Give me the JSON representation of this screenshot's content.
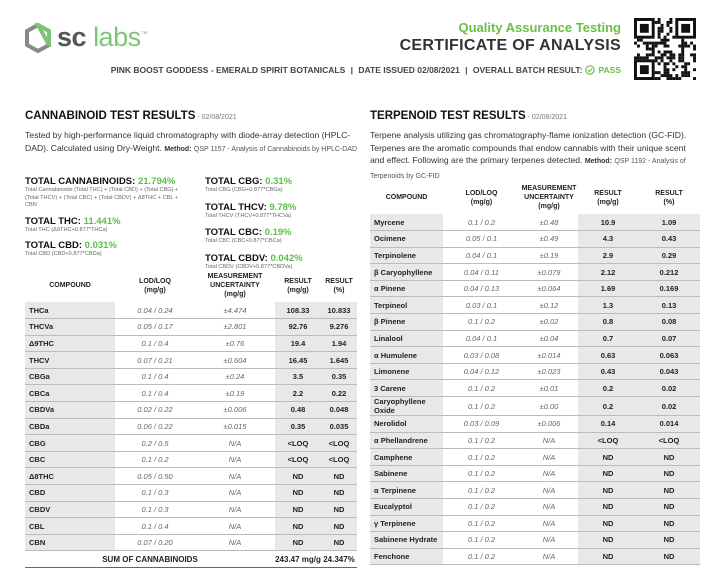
{
  "header": {
    "brand_bold": "sc",
    "brand_light": "labs",
    "brand_tm": "™",
    "qa_title": "Quality Assurance Testing",
    "coa_title": "CERTIFICATE OF ANALYSIS",
    "product": "PINK BOOST GODDESS - EMERALD SPIRIT BOTANICALS",
    "date_issued": "DATE ISSUED 02/08/2021",
    "batch_label": "OVERALL BATCH RESULT:",
    "batch_result": "PASS",
    "accent": "#6cc04a"
  },
  "cannabinoid": {
    "title": "CANNABINOID TEST RESULTS",
    "date": " - 02/08/2021",
    "desc": "Tested by high-performance liquid chromatography with diode-array detection (HPLC-DAD). Calculated using Dry-Weight.",
    "method_label": "Method:",
    "method": "QSP 1157 - Analysis of Cannabinoids by HPLC-DAD",
    "totals_left": [
      {
        "label": "TOTAL CANNABINOIDS: ",
        "value": "21.794%",
        "formula": "Total Cannabinoids (Total THC) + (Total CBD) + (Total CBG) + (Total THCV) + (Total CBC) + (Total CBDV) + Δ8THC + CBL + CBN"
      },
      {
        "label": "TOTAL THC: ",
        "value": "11.441%",
        "formula": "Total THC (Δ9THC+0.877*THCa)"
      },
      {
        "label": "TOTAL CBD: ",
        "value": "0.031%",
        "formula": "Total CBD (CBD+0.877*CBDa)"
      }
    ],
    "totals_right": [
      {
        "label": "TOTAL CBG: ",
        "value": "0.31%",
        "formula": "Total CBG (CBG+0.877*CBGa)"
      },
      {
        "label": "TOTAL THCV: ",
        "value": "9.78%",
        "formula": "Total THCV (THCV+0.877*THCVa)"
      },
      {
        "label": "TOTAL CBC: ",
        "value": "0.19%",
        "formula": "Total CBC (CBC+0.877*CBCa)"
      },
      {
        "label": "TOTAL CBDV: ",
        "value": "0.042%",
        "formula": "Total CBDV (CBDV+0.877*CBDVa)"
      }
    ],
    "columns": [
      "COMPOUND",
      "LOD/LOQ\n(mg/g)",
      "MEASUREMENT\nUNCERTAINTY\n(mg/g)",
      "RESULT\n(mg/g)",
      "RESULT\n(%)"
    ],
    "rows": [
      [
        "THCa",
        "0.04 / 0.24",
        "±4.474",
        "108.33",
        "10.833"
      ],
      [
        "THCVa",
        "0.05 / 0.17",
        "±2.801",
        "92.76",
        "9.276"
      ],
      [
        "Δ9THC",
        "0.1 / 0.4",
        "±0.76",
        "19.4",
        "1.94"
      ],
      [
        "THCV",
        "0.07 / 0.21",
        "±0.604",
        "16.45",
        "1.645"
      ],
      [
        "CBGa",
        "0.1 / 0.4",
        "±0.24",
        "3.5",
        "0.35"
      ],
      [
        "CBCa",
        "0.1 / 0.4",
        "±0.19",
        "2.2",
        "0.22"
      ],
      [
        "CBDVa",
        "0.02 / 0.22",
        "±0.006",
        "0.48",
        "0.048"
      ],
      [
        "CBDa",
        "0.06 / 0.22",
        "±0.015",
        "0.35",
        "0.035"
      ],
      [
        "CBG",
        "0.2 / 0.5",
        "N/A",
        "<LOQ",
        "<LOQ"
      ],
      [
        "CBC",
        "0.1 / 0.2",
        "N/A",
        "<LOQ",
        "<LOQ"
      ],
      [
        "Δ8THC",
        "0.05 / 0.50",
        "N/A",
        "ND",
        "ND"
      ],
      [
        "CBD",
        "0.1 / 0.3",
        "N/A",
        "ND",
        "ND"
      ],
      [
        "CBDV",
        "0.1 / 0.3",
        "N/A",
        "ND",
        "ND"
      ],
      [
        "CBL",
        "0.1 / 0.4",
        "N/A",
        "ND",
        "ND"
      ],
      [
        "CBN",
        "0.07 / 0.20",
        "N/A",
        "ND",
        "ND"
      ]
    ],
    "sum_label": "SUM OF CANNABINOIDS",
    "sum_mg": "243.47 mg/g",
    "sum_pct": "24.347%"
  },
  "terpenoid": {
    "title": "TERPENOID TEST RESULTS",
    "date": " - 02/08/2021",
    "desc": "Terpene analysis utilizing gas chromatography-flame ionization detection (GC-FID). Terpenes are the aromatic compounds that endow cannabis with their unique scent and effect. Following are the primary terpenes detected.",
    "method_label": "Method:",
    "method": "QSP 1192 - Analysis of Terpenoids by GC-FID",
    "columns": [
      "COMPOUND",
      "LOD/LOQ\n(mg/g)",
      "MEASUREMENT\nUNCERTAINTY\n(mg/g)",
      "RESULT\n(mg/g)",
      "RESULT\n(%)"
    ],
    "rows": [
      [
        "Myrcene",
        "0.1 / 0.2",
        "±0.48",
        "10.9",
        "1.09"
      ],
      [
        "Ocimene",
        "0.05 / 0.1",
        "±0.49",
        "4.3",
        "0.43"
      ],
      [
        "Terpinolene",
        "0.04 / 0.1",
        "±0.19",
        "2.9",
        "0.29"
      ],
      [
        "β Caryophyllene",
        "0.04 / 0.11",
        "±0.079",
        "2.12",
        "0.212"
      ],
      [
        "α Pinene",
        "0.04 / 0.13",
        "±0.064",
        "1.69",
        "0.169"
      ],
      [
        "Terpineol",
        "0.03 / 0.1",
        "±0.12",
        "1.3",
        "0.13"
      ],
      [
        "β Pinene",
        "0.1 / 0.2",
        "±0.02",
        "0.8",
        "0.08"
      ],
      [
        "Linalool",
        "0.04 / 0.1",
        "±0.04",
        "0.7",
        "0.07"
      ],
      [
        "α Humulene",
        "0.03 / 0.08",
        "±0.014",
        "0.63",
        "0.063"
      ],
      [
        "Limonene",
        "0.04 / 0.12",
        "±0.023",
        "0.43",
        "0.043"
      ],
      [
        "3 Carene",
        "0.1 / 0.2",
        "±0.01",
        "0.2",
        "0.02"
      ],
      [
        "Caryophyllene Oxide",
        "0.1 / 0.2",
        "±0.00",
        "0.2",
        "0.02"
      ],
      [
        "Nerolidol",
        "0.03 / 0.09",
        "±0.006",
        "0.14",
        "0.014"
      ],
      [
        "α Phellandrene",
        "0.1 / 0.2",
        "N/A",
        "<LOQ",
        "<LOQ"
      ],
      [
        "Camphene",
        "0.1 / 0.2",
        "N/A",
        "ND",
        "ND"
      ],
      [
        "Sabinene",
        "0.1 / 0.2",
        "N/A",
        "ND",
        "ND"
      ],
      [
        "α Terpinene",
        "0.1 / 0.2",
        "N/A",
        "ND",
        "ND"
      ],
      [
        "Eucalyptol",
        "0.1 / 0.2",
        "N/A",
        "ND",
        "ND"
      ],
      [
        "γ Terpinene",
        "0.1 / 0.2",
        "N/A",
        "ND",
        "ND"
      ],
      [
        "Sabinene Hydrate",
        "0.1 / 0.2",
        "N/A",
        "ND",
        "ND"
      ],
      [
        "Fenchone",
        "0.1 / 0.2",
        "N/A",
        "ND",
        "ND"
      ]
    ]
  }
}
